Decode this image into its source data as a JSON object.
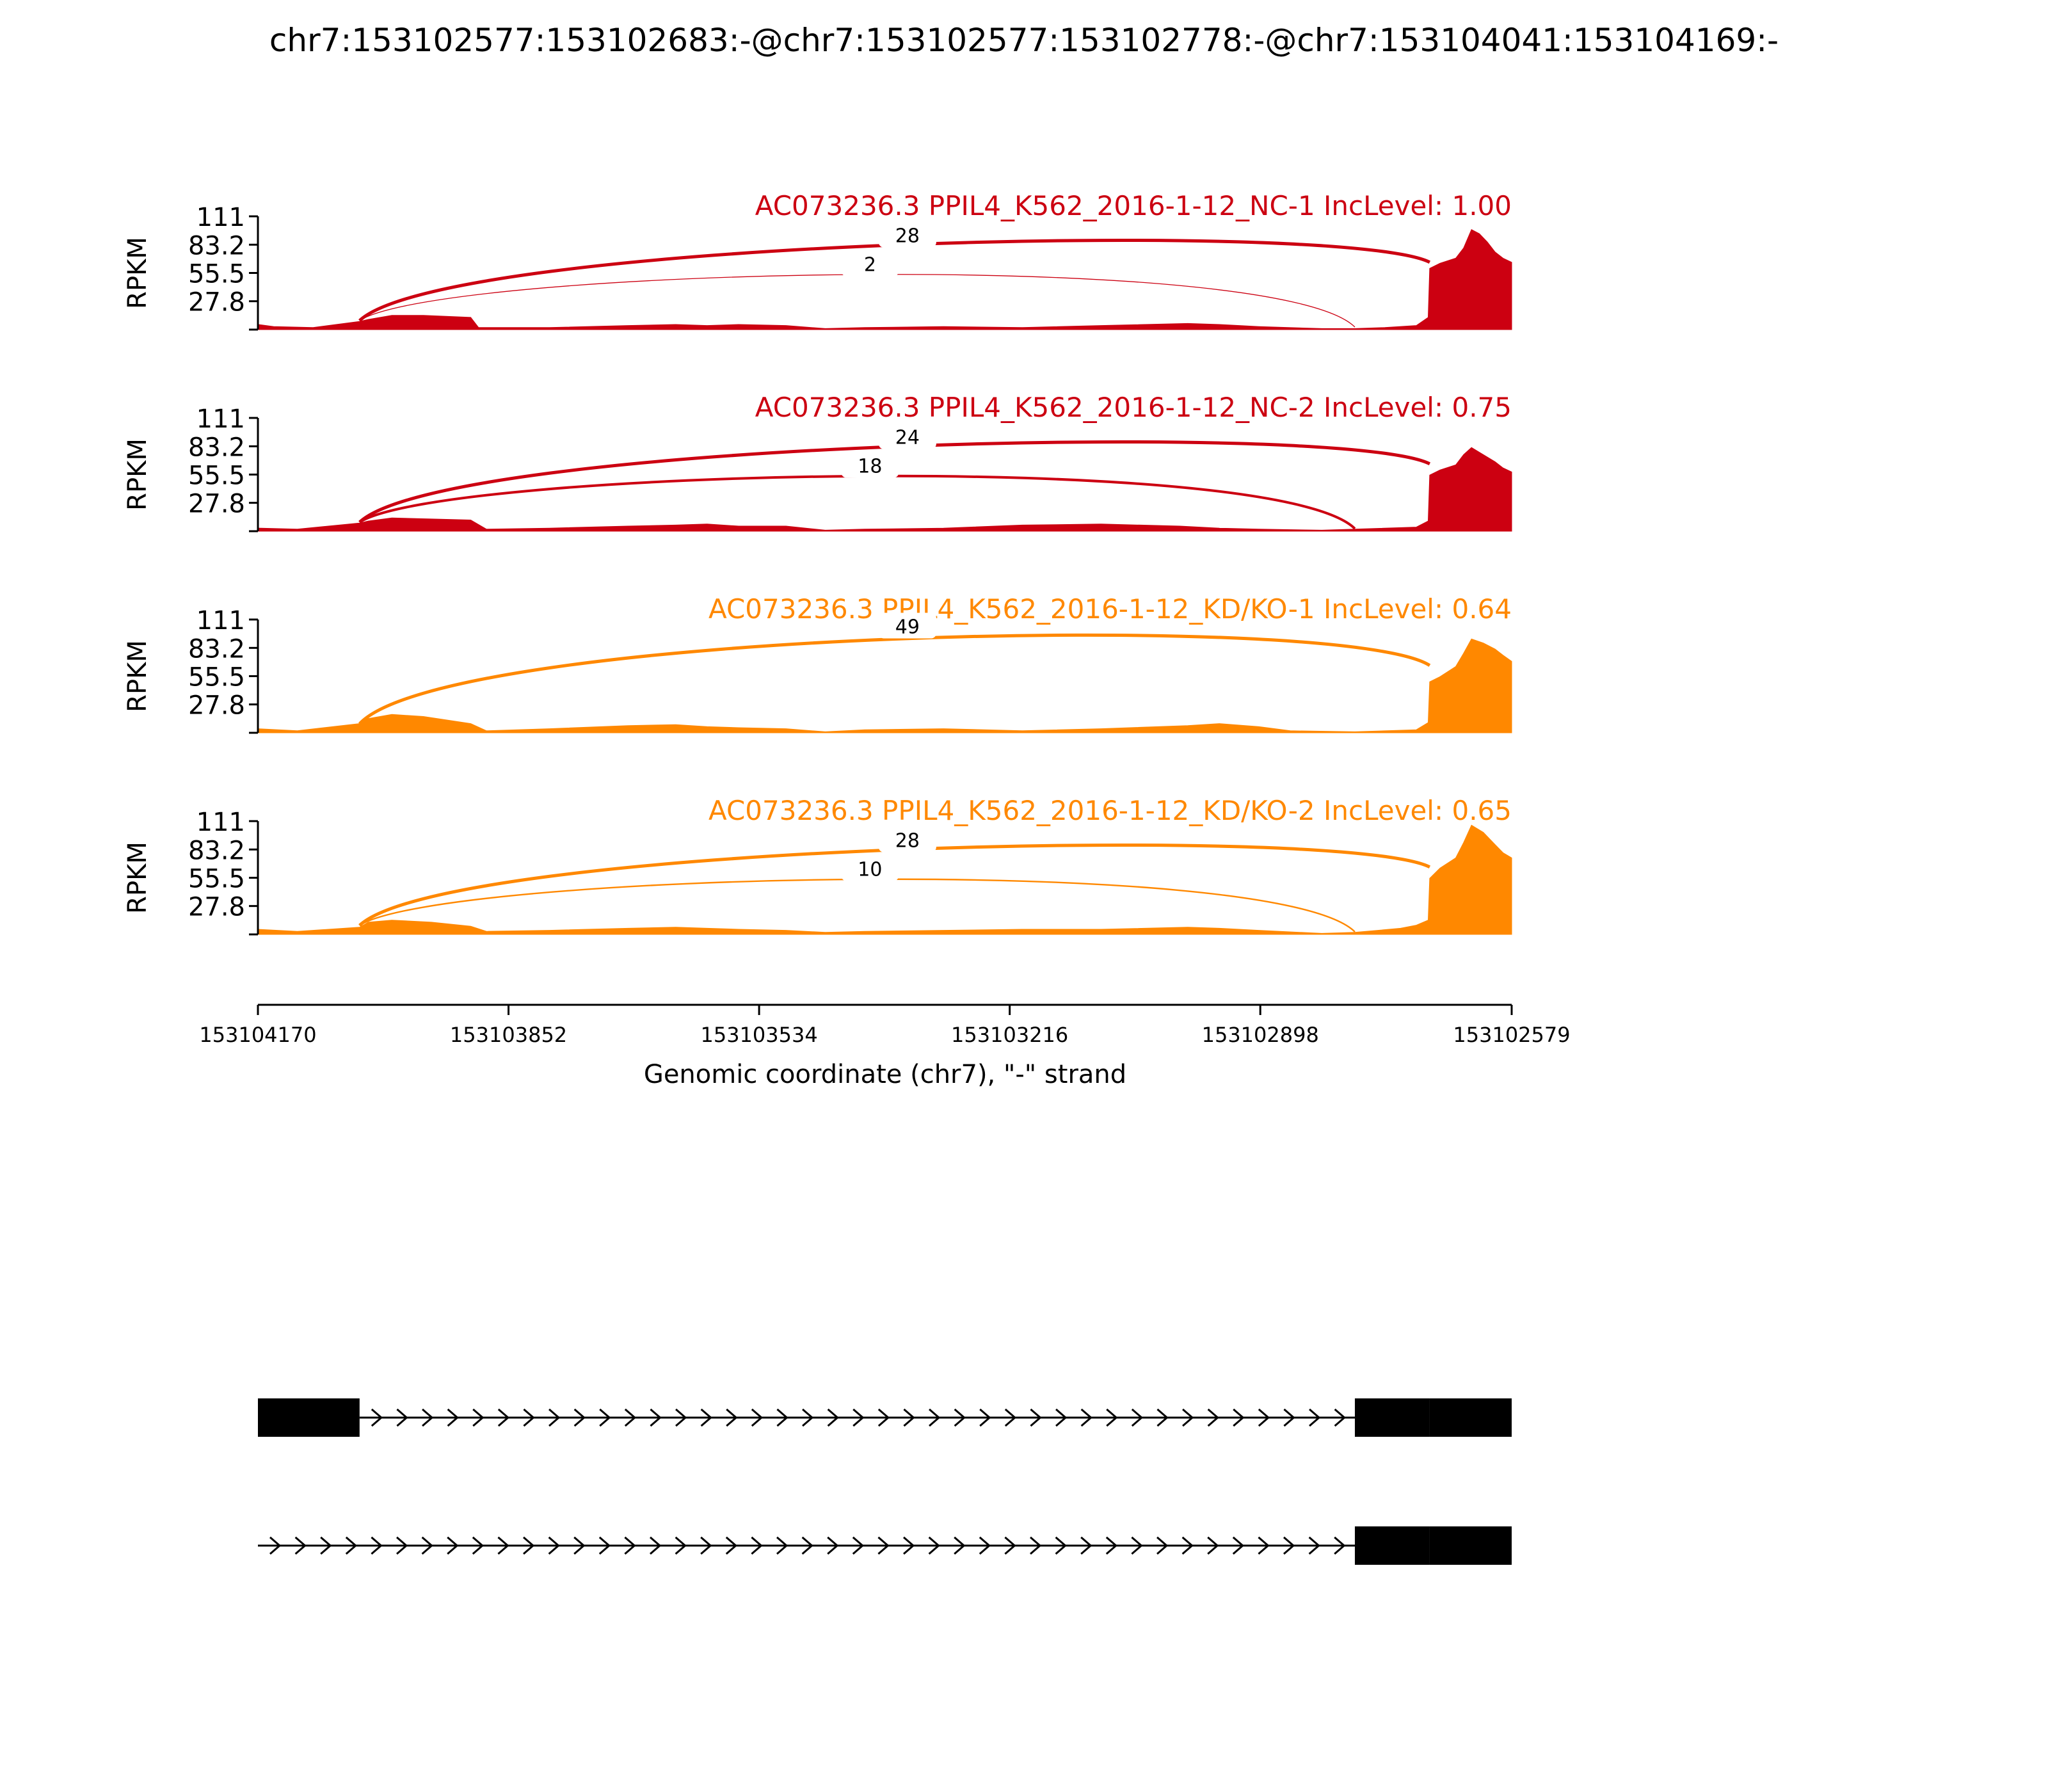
{
  "figure_title": "chr7:153102577:153102683:-@chr7:153102577:153102778:-@chr7:153104041:153104169:-",
  "chart_data": {
    "type": "area",
    "y_axis_label": "RPKM",
    "y_ticks": [
      "111",
      "83.2",
      "55.5",
      "27.8"
    ],
    "ylim": [
      0,
      111
    ],
    "x_axis_label": "Genomic coordinate (chr7), \"-\" strand",
    "x_ticks": [
      "153104170",
      "153103852",
      "153103534",
      "153103216",
      "153102898",
      "153102579"
    ],
    "xlim": [
      153104170,
      153102579
    ],
    "exons_shown_left_to_right": [
      {
        "start": 153104170,
        "end": 153104041
      },
      {
        "start": 153102778,
        "end": 153102579
      }
    ],
    "panels": [
      {
        "label": "AC073236.3 PPIL4_K562_2016-1-12_NC-1 IncLevel: 1.00",
        "color": "#cc0011",
        "junctions": [
          {
            "from": 153104041,
            "to": 153102683,
            "count": 28,
            "label": "28"
          },
          {
            "from": 153104041,
            "to": 153102778,
            "count": 2,
            "label": "2"
          }
        ],
        "coverage": [
          [
            153104170,
            5
          ],
          [
            153104150,
            3
          ],
          [
            153104100,
            2
          ],
          [
            153104041,
            8
          ],
          [
            153104030,
            10
          ],
          [
            153104000,
            14
          ],
          [
            153103960,
            14
          ],
          [
            153103900,
            12
          ],
          [
            153103890,
            2
          ],
          [
            153103800,
            2
          ],
          [
            153103700,
            4
          ],
          [
            153103640,
            5
          ],
          [
            153103600,
            4
          ],
          [
            153103560,
            5
          ],
          [
            153103500,
            4
          ],
          [
            153103450,
            1
          ],
          [
            153103400,
            2
          ],
          [
            153103300,
            3
          ],
          [
            153103200,
            2
          ],
          [
            153103100,
            4
          ],
          [
            153102990,
            6
          ],
          [
            153102950,
            5
          ],
          [
            153102900,
            3
          ],
          [
            153102820,
            1
          ],
          [
            153102778,
            1
          ],
          [
            153102740,
            2
          ],
          [
            153102700,
            4
          ],
          [
            153102685,
            12
          ],
          [
            153102683,
            60
          ],
          [
            153102670,
            65
          ],
          [
            153102650,
            70
          ],
          [
            153102640,
            80
          ],
          [
            153102630,
            98
          ],
          [
            153102620,
            94
          ],
          [
            153102610,
            86
          ],
          [
            153102600,
            76
          ],
          [
            153102590,
            70
          ],
          [
            153102579,
            66
          ]
        ]
      },
      {
        "label": "AC073236.3 PPIL4_K562_2016-1-12_NC-2 IncLevel: 0.75",
        "color": "#cc0011",
        "junctions": [
          {
            "from": 153104041,
            "to": 153102683,
            "count": 24,
            "label": "24"
          },
          {
            "from": 153104041,
            "to": 153102778,
            "count": 18,
            "label": "18"
          }
        ],
        "coverage": [
          [
            153104170,
            3
          ],
          [
            153104120,
            2
          ],
          [
            153104041,
            8
          ],
          [
            153104030,
            10
          ],
          [
            153104000,
            13
          ],
          [
            153103950,
            12
          ],
          [
            153103900,
            11
          ],
          [
            153103880,
            2
          ],
          [
            153103800,
            3
          ],
          [
            153103700,
            5
          ],
          [
            153103640,
            6
          ],
          [
            153103600,
            7
          ],
          [
            153103560,
            5
          ],
          [
            153103500,
            5
          ],
          [
            153103450,
            1
          ],
          [
            153103400,
            2
          ],
          [
            153103300,
            3
          ],
          [
            153103200,
            6
          ],
          [
            153103100,
            7
          ],
          [
            153103000,
            5
          ],
          [
            153102950,
            3
          ],
          [
            153102900,
            2
          ],
          [
            153102820,
            1
          ],
          [
            153102778,
            2
          ],
          [
            153102700,
            4
          ],
          [
            153102685,
            10
          ],
          [
            153102683,
            55
          ],
          [
            153102670,
            60
          ],
          [
            153102650,
            65
          ],
          [
            153102640,
            75
          ],
          [
            153102630,
            82
          ],
          [
            153102615,
            75
          ],
          [
            153102600,
            68
          ],
          [
            153102590,
            62
          ],
          [
            153102579,
            58
          ]
        ]
      },
      {
        "label": "AC073236.3 PPIL4_K562_2016-1-12_KD/KO-1 IncLevel: 0.64",
        "color": "#ff8800",
        "junctions": [
          {
            "from": 153104041,
            "to": 153102683,
            "count": 49,
            "label": "49"
          }
        ],
        "coverage": [
          [
            153104170,
            4
          ],
          [
            153104120,
            2
          ],
          [
            153104041,
            9
          ],
          [
            153104030,
            14
          ],
          [
            153104000,
            18
          ],
          [
            153103960,
            16
          ],
          [
            153103900,
            9
          ],
          [
            153103880,
            2
          ],
          [
            153103800,
            4
          ],
          [
            153103700,
            7
          ],
          [
            153103640,
            8
          ],
          [
            153103600,
            6
          ],
          [
            153103560,
            5
          ],
          [
            153103500,
            4
          ],
          [
            153103450,
            1
          ],
          [
            153103400,
            3
          ],
          [
            153103300,
            4
          ],
          [
            153103200,
            2
          ],
          [
            153103100,
            4
          ],
          [
            153102990,
            7
          ],
          [
            153102950,
            9
          ],
          [
            153102900,
            6
          ],
          [
            153102860,
            2
          ],
          [
            153102778,
            1
          ],
          [
            153102700,
            3
          ],
          [
            153102685,
            10
          ],
          [
            153102683,
            50
          ],
          [
            153102670,
            55
          ],
          [
            153102650,
            65
          ],
          [
            153102640,
            78
          ],
          [
            153102630,
            92
          ],
          [
            153102615,
            88
          ],
          [
            153102600,
            82
          ],
          [
            153102590,
            76
          ],
          [
            153102579,
            70
          ]
        ]
      },
      {
        "label": "AC073236.3 PPIL4_K562_2016-1-12_KD/KO-2 IncLevel: 0.65",
        "color": "#ff8800",
        "junctions": [
          {
            "from": 153104041,
            "to": 153102683,
            "count": 28,
            "label": "28"
          },
          {
            "from": 153104041,
            "to": 153102778,
            "count": 10,
            "label": "10"
          }
        ],
        "coverage": [
          [
            153104170,
            5
          ],
          [
            153104120,
            3
          ],
          [
            153104041,
            7
          ],
          [
            153104030,
            12
          ],
          [
            153104000,
            14
          ],
          [
            153103950,
            12
          ],
          [
            153103900,
            8
          ],
          [
            153103880,
            3
          ],
          [
            153103800,
            4
          ],
          [
            153103700,
            6
          ],
          [
            153103640,
            7
          ],
          [
            153103600,
            6
          ],
          [
            153103560,
            5
          ],
          [
            153103500,
            4
          ],
          [
            153103450,
            2
          ],
          [
            153103400,
            3
          ],
          [
            153103300,
            4
          ],
          [
            153103200,
            5
          ],
          [
            153103100,
            5
          ],
          [
            153102990,
            7
          ],
          [
            153102950,
            6
          ],
          [
            153102900,
            4
          ],
          [
            153102820,
            1
          ],
          [
            153102778,
            2
          ],
          [
            153102720,
            6
          ],
          [
            153102700,
            9
          ],
          [
            153102685,
            14
          ],
          [
            153102683,
            55
          ],
          [
            153102670,
            65
          ],
          [
            153102650,
            75
          ],
          [
            153102640,
            90
          ],
          [
            153102630,
            107
          ],
          [
            153102615,
            100
          ],
          [
            153102600,
            88
          ],
          [
            153102590,
            80
          ],
          [
            153102579,
            75
          ]
        ]
      }
    ]
  },
  "transcripts": [
    {
      "exons": [
        {
          "start": 153104170,
          "end": 153104041
        },
        {
          "start": 153102778,
          "end": 153102683
        },
        {
          "start": 153102683,
          "end": 153102579
        }
      ],
      "intron": {
        "start": 153104041,
        "end": 153102778
      }
    },
    {
      "exons": [
        {
          "start": 153102778,
          "end": 153102683
        },
        {
          "start": 153102683,
          "end": 153102579
        }
      ],
      "intron": {
        "start": 153104170,
        "end": 153102778
      }
    }
  ],
  "colors": {
    "control": "#cc0011",
    "knockdown": "#ff8800",
    "axis": "#000000"
  }
}
